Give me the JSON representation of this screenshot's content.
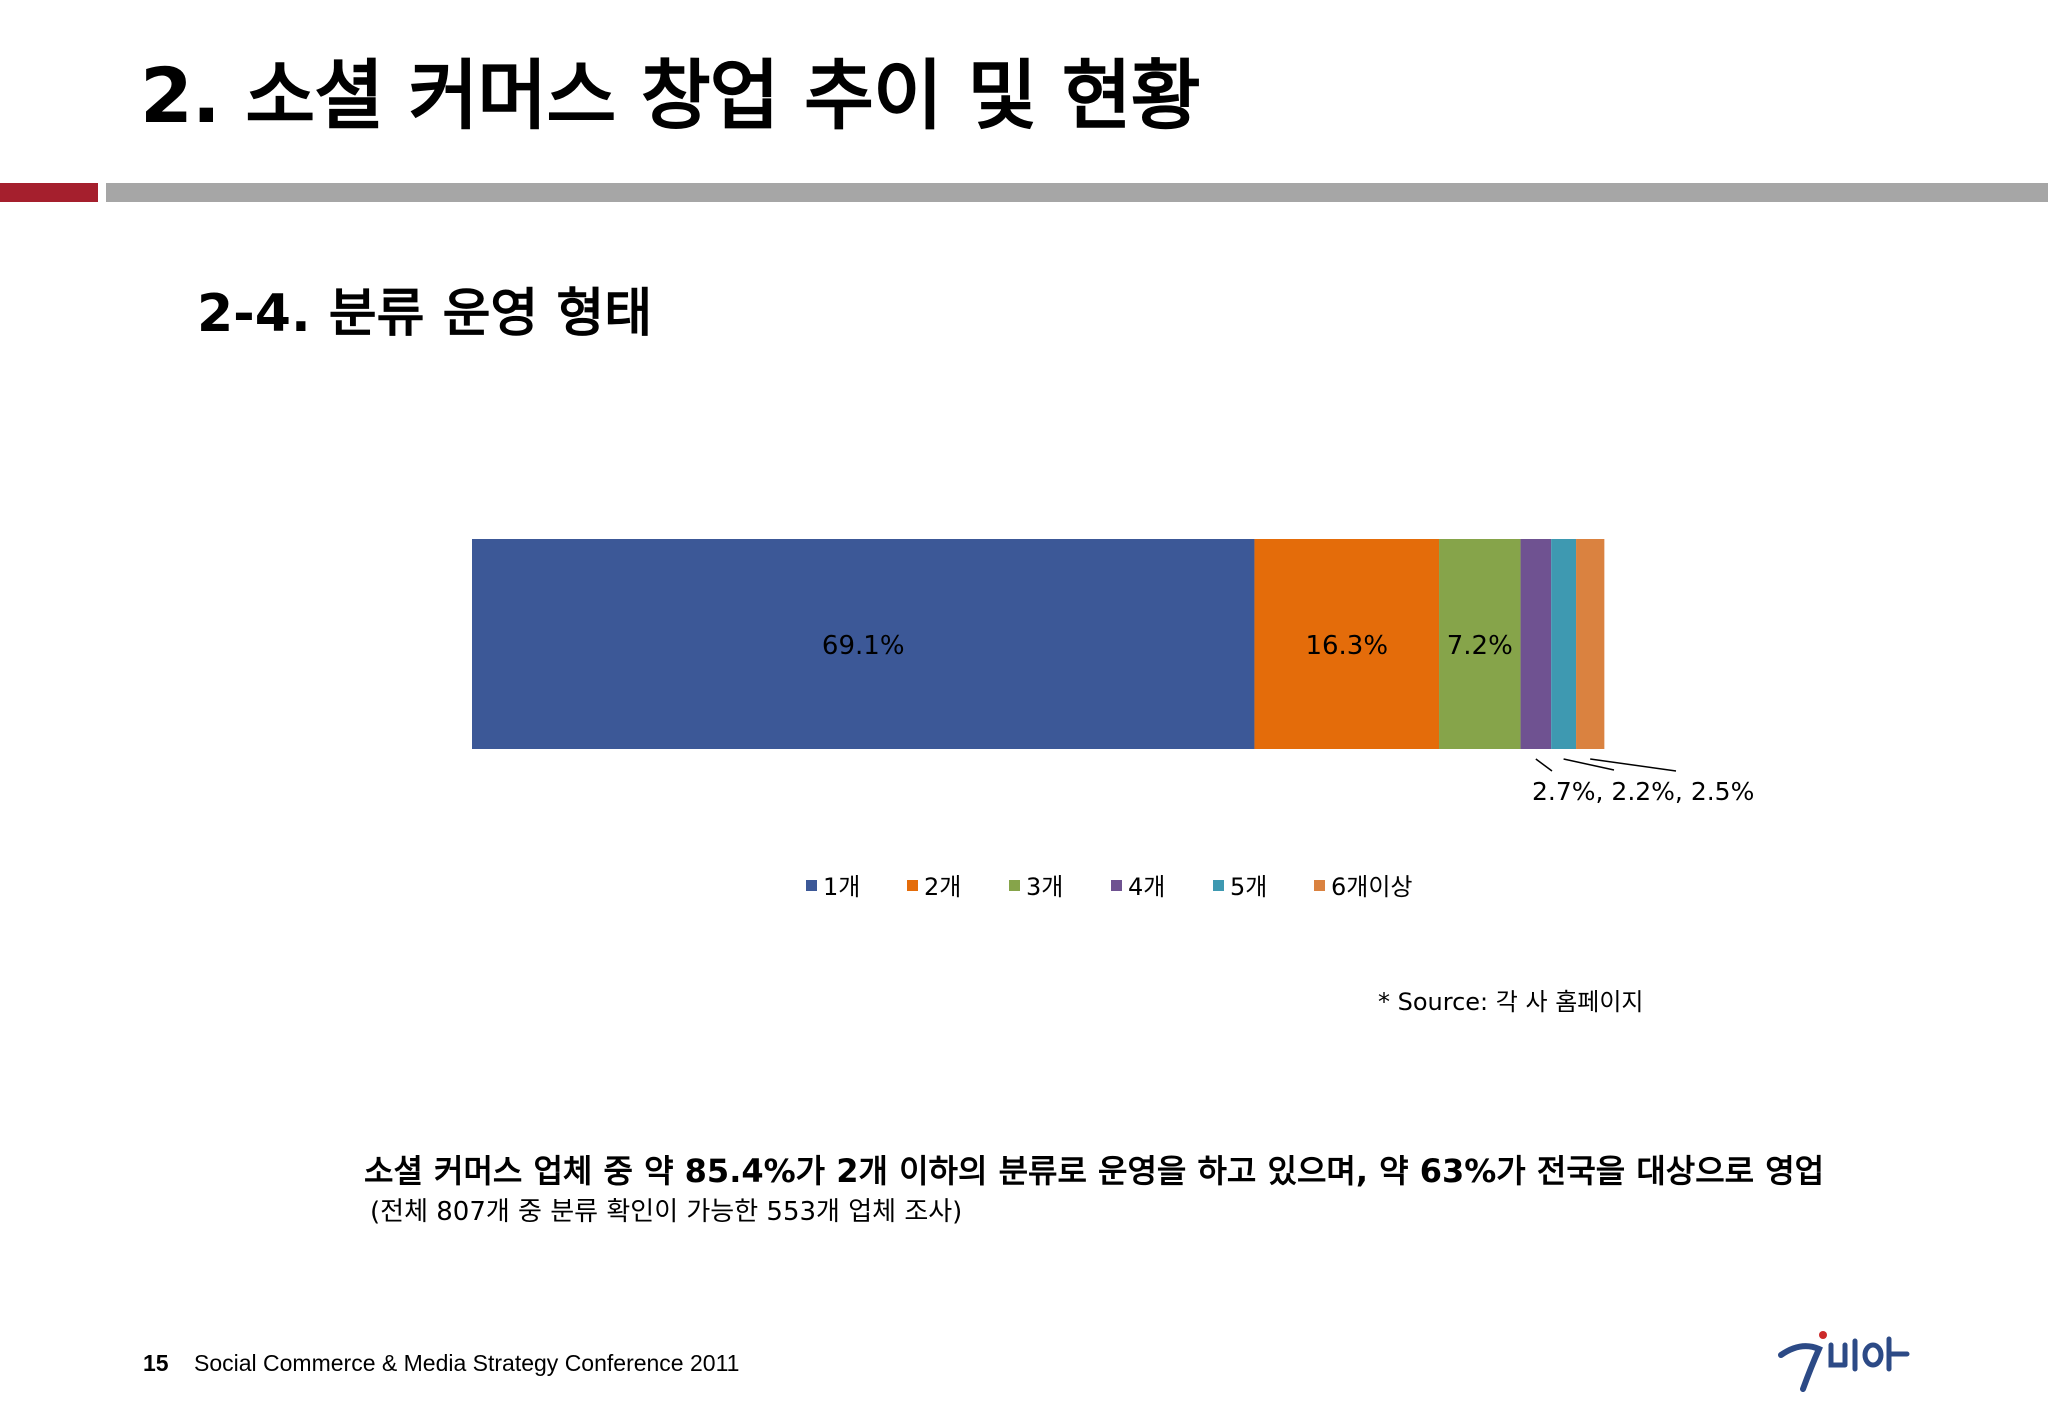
{
  "slide": {
    "title": "2. 소셜 커머스 창업 추이 및 현황",
    "subtitle": "2-4. 분류 운영 형태",
    "source": "* Source: 각 사 홈페이지",
    "summary": "소셜 커머스 업체 중 약 85.4%가 2개 이하의 분류로 운영을 하고 있으며, 약 63%가 전국을 대상으로 영업",
    "note": "(전체 807개 중 분류 확인이 가능한 553개 업체 조사)",
    "page_number": "15",
    "footer": "Social Commerce & Media Strategy Conference 2011",
    "accent_colors": {
      "red_rule": "#a51f2d",
      "gray_rule": "#a6a6a6"
    },
    "logo_icon": "dabia-logo-icon"
  },
  "chart_data": {
    "type": "bar",
    "orientation": "horizontal-stacked-100",
    "categories": [
      ""
    ],
    "series": [
      {
        "name": "1개",
        "values": [
          69.1
        ],
        "color": "#3c5897"
      },
      {
        "name": "2개",
        "values": [
          16.3
        ],
        "color": "#e46c0a"
      },
      {
        "name": "3개",
        "values": [
          7.2
        ],
        "color": "#86a44a"
      },
      {
        "name": "4개",
        "values": [
          2.7
        ],
        "color": "#6f5291"
      },
      {
        "name": "5개",
        "values": [
          2.2
        ],
        "color": "#3e99b1"
      },
      {
        "name": "6개이상",
        "values": [
          2.5
        ],
        "color": "#da8240"
      }
    ],
    "data_labels": [
      "69.1%",
      "16.3%",
      "7.2%"
    ],
    "callout_label": "2.7%, 2.2%, 2.5%",
    "legend_position": "bottom",
    "grid": false,
    "xlim": [
      0,
      102
    ]
  }
}
